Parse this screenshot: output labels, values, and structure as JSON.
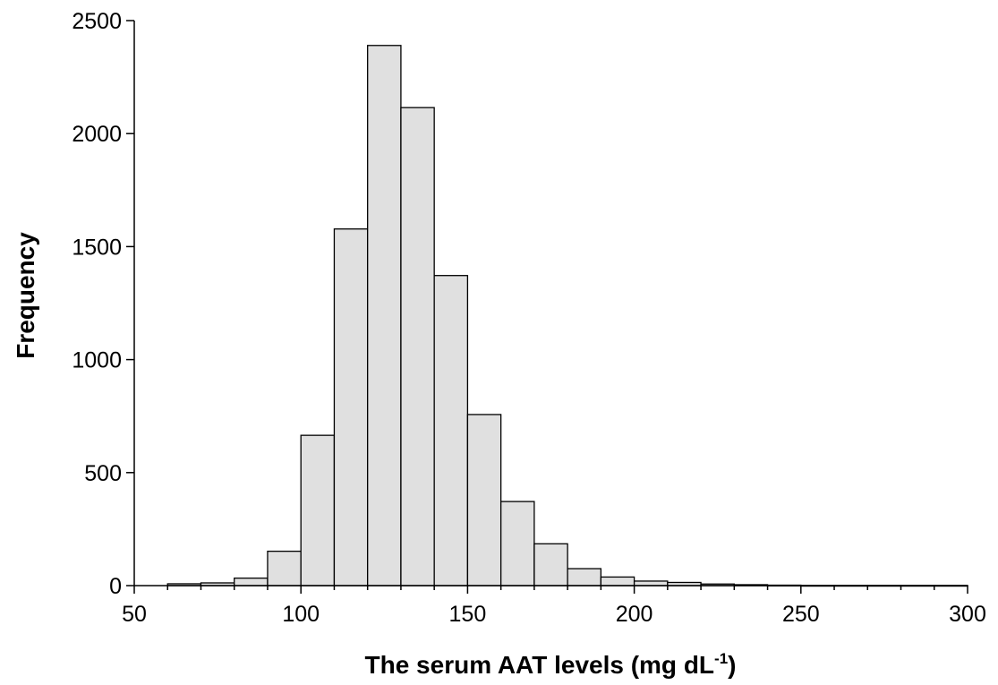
{
  "chart_data": {
    "type": "bar",
    "title": "",
    "xlabel": "The serum AAT levels (mg dL",
    "xlabel_superscript": "-1",
    "xlabel_suffix": ")",
    "ylabel": "Frequency",
    "xlim": [
      50,
      300
    ],
    "ylim": [
      0,
      2500
    ],
    "xticks": [
      50,
      100,
      150,
      200,
      250,
      300
    ],
    "yticks": [
      0,
      500,
      1000,
      1500,
      2000,
      2500
    ],
    "bin_width": 10,
    "bins": [
      {
        "start": 60,
        "end": 70,
        "value": 8
      },
      {
        "start": 70,
        "end": 80,
        "value": 12
      },
      {
        "start": 80,
        "end": 90,
        "value": 33
      },
      {
        "start": 90,
        "end": 100,
        "value": 152
      },
      {
        "start": 100,
        "end": 110,
        "value": 665
      },
      {
        "start": 110,
        "end": 120,
        "value": 1578
      },
      {
        "start": 120,
        "end": 130,
        "value": 2390
      },
      {
        "start": 130,
        "end": 140,
        "value": 2115
      },
      {
        "start": 140,
        "end": 150,
        "value": 1372
      },
      {
        "start": 150,
        "end": 160,
        "value": 757
      },
      {
        "start": 160,
        "end": 170,
        "value": 372
      },
      {
        "start": 170,
        "end": 180,
        "value": 185
      },
      {
        "start": 180,
        "end": 190,
        "value": 75
      },
      {
        "start": 190,
        "end": 200,
        "value": 38
      },
      {
        "start": 200,
        "end": 210,
        "value": 20
      },
      {
        "start": 210,
        "end": 220,
        "value": 14
      },
      {
        "start": 220,
        "end": 230,
        "value": 7
      },
      {
        "start": 230,
        "end": 240,
        "value": 4
      },
      {
        "start": 240,
        "end": 250,
        "value": 2
      },
      {
        "start": 250,
        "end": 260,
        "value": 1
      },
      {
        "start": 260,
        "end": 270,
        "value": 1
      },
      {
        "start": 270,
        "end": 280,
        "value": 1
      },
      {
        "start": 280,
        "end": 290,
        "value": 1
      },
      {
        "start": 290,
        "end": 300,
        "value": 1
      }
    ],
    "grid": false,
    "legend": "none",
    "bar_fill": "#e0e0e0",
    "bar_stroke": "#000000"
  }
}
